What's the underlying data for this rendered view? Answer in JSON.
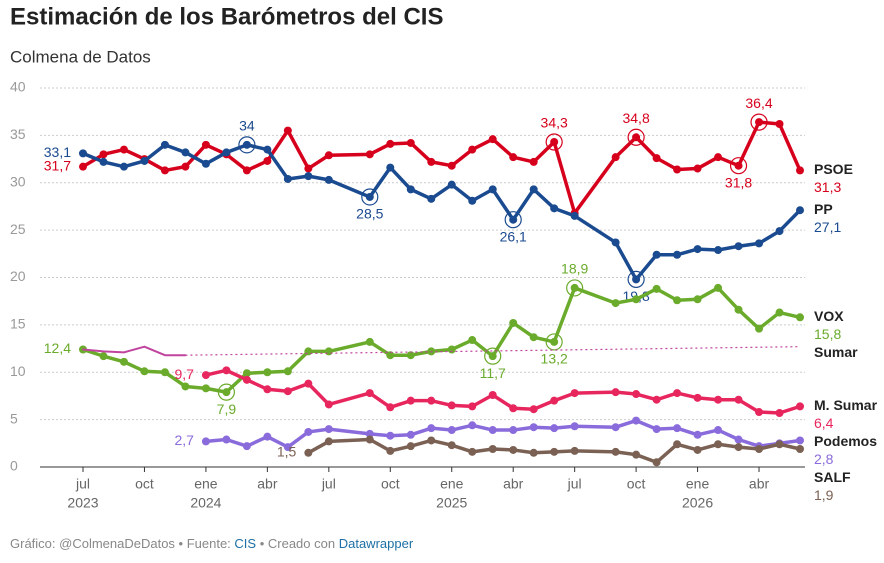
{
  "chart_data": {
    "type": "line",
    "title": "Estimación de los Barómetros del CIS",
    "subtitle": "Colmena de Datos",
    "footer": {
      "prefix": "Gráfico: @ColmenaDeDatos • Fuente:",
      "source": "CIS",
      "middle": "• Creado con",
      "tool": "Datawrapper"
    },
    "x": [
      "2023-07",
      "2023-08",
      "2023-09",
      "2023-10",
      "2023-11",
      "2023-12",
      "2024-01",
      "2024-02",
      "2024-03",
      "2024-04",
      "2024-05",
      "2024-06",
      "2024-07",
      "2024-09",
      "2024-10",
      "2024-11",
      "2024-12",
      "2025-01",
      "2025-02",
      "2025-03",
      "2025-04",
      "2025-05",
      "2025-06",
      "2025-07",
      "2025-09",
      "2025-10",
      "2025-11",
      "2025-12",
      "2026-01",
      "2026-02",
      "2026-03",
      "2026-04",
      "2026-05",
      "2026-06"
    ],
    "xlim": [
      "2023-07",
      "2026-06"
    ],
    "xticks": [
      {
        "value": "2023-07",
        "label": "jul"
      },
      {
        "value": "2023-10",
        "label": "oct"
      },
      {
        "value": "2024-01",
        "label": "ene"
      },
      {
        "value": "2024-04",
        "label": "abr"
      },
      {
        "value": "2024-07",
        "label": "jul"
      },
      {
        "value": "2024-10",
        "label": "oct"
      },
      {
        "value": "2025-01",
        "label": "ene"
      },
      {
        "value": "2025-04",
        "label": "abr"
      },
      {
        "value": "2025-07",
        "label": "jul"
      },
      {
        "value": "2025-10",
        "label": "oct"
      },
      {
        "value": "2026-01",
        "label": "ene"
      },
      {
        "value": "2026-04",
        "label": "abr"
      }
    ],
    "xtick_years": [
      {
        "value": "2023-07",
        "label": "2023"
      },
      {
        "value": "2024-01",
        "label": "2024"
      },
      {
        "value": "2025-01",
        "label": "2025"
      },
      {
        "value": "2026-01",
        "label": "2026"
      }
    ],
    "ylim": [
      0,
      40
    ],
    "yticks": [
      0,
      5,
      10,
      15,
      20,
      25,
      30,
      35,
      40
    ],
    "grid": true,
    "series": [
      {
        "name": "PSOE",
        "color": "#d7001c",
        "markers": true,
        "values": [
          31.7,
          33,
          33.5,
          32.5,
          31.3,
          31.7,
          34,
          33,
          31.3,
          32.3,
          35.5,
          31.5,
          32.9,
          33,
          34.1,
          34.2,
          32.2,
          31.8,
          33.5,
          34.6,
          32.7,
          32.2,
          34.3,
          26.8,
          32.7,
          34.8,
          32.6,
          31.4,
          31.5,
          32.7,
          31.8,
          36.4,
          36.2,
          31.3
        ],
        "value_labels": [
          "31,7",
          null,
          null,
          null,
          null,
          null,
          null,
          null,
          null,
          null,
          null,
          null,
          null,
          null,
          null,
          null,
          null,
          null,
          null,
          null,
          null,
          null,
          "34,3",
          null,
          null,
          "34,8",
          null,
          null,
          null,
          null,
          "31,8",
          "36,4",
          null,
          "31,3"
        ]
      },
      {
        "name": "PP",
        "color": "#1a4a8f",
        "markers": true,
        "values": [
          33.1,
          32.2,
          31.7,
          32.3,
          34,
          33.2,
          32,
          33.2,
          34,
          33.5,
          30.4,
          30.7,
          30.3,
          28.5,
          31.6,
          29.3,
          28.3,
          29.8,
          28.1,
          29.3,
          26.1,
          29.3,
          27.3,
          26.5,
          23.7,
          19.8,
          22.4,
          22.4,
          23,
          22.9,
          23.3,
          23.6,
          24.9,
          27.1
        ],
        "value_labels": [
          "33,1",
          null,
          null,
          null,
          null,
          null,
          null,
          null,
          "34",
          null,
          null,
          null,
          null,
          "28,5",
          null,
          null,
          null,
          null,
          null,
          null,
          "26,1",
          null,
          null,
          null,
          null,
          "19,8",
          null,
          null,
          null,
          null,
          null,
          null,
          null,
          "27,1"
        ]
      },
      {
        "name": "VOX",
        "color": "#6aab2b",
        "markers": true,
        "values": [
          12.4,
          11.7,
          11.1,
          10.1,
          10,
          8.5,
          8.3,
          7.9,
          9.9,
          10,
          10.1,
          12.2,
          12.2,
          13.2,
          11.8,
          11.8,
          12.2,
          12.4,
          13.4,
          11.7,
          15.2,
          13.7,
          13.2,
          18.9,
          17.3,
          17.7,
          18.8,
          17.6,
          17.7,
          18.9,
          16.6,
          14.6,
          16.3,
          15.8
        ],
        "value_labels": [
          "12,4",
          null,
          null,
          null,
          null,
          null,
          null,
          "7,9",
          null,
          null,
          null,
          null,
          null,
          null,
          null,
          null,
          null,
          null,
          null,
          "11,7",
          null,
          null,
          "13,2",
          "18,9",
          null,
          null,
          null,
          null,
          null,
          null,
          null,
          null,
          null,
          "15,8"
        ]
      },
      {
        "name": "Sumar",
        "color": "#c0449e",
        "markers": false,
        "gap": "dotted",
        "values": [
          12.4,
          12.2,
          12.1,
          12.7,
          11.8,
          11.8,
          null,
          null,
          null,
          null,
          null,
          null,
          null,
          null,
          null,
          null,
          null,
          null,
          null,
          null,
          null,
          null,
          null,
          null,
          null,
          null,
          null,
          null,
          null,
          null,
          null,
          null,
          null,
          12.7
        ]
      },
      {
        "name": "M. Sumar",
        "color": "#e8265e",
        "markers": true,
        "values": [
          null,
          null,
          null,
          null,
          null,
          null,
          9.7,
          10.2,
          9.2,
          8.2,
          8,
          8.8,
          6.6,
          7.8,
          6.3,
          7,
          7,
          6.5,
          6.4,
          7.6,
          6.2,
          6.1,
          7,
          7.8,
          7.9,
          7.7,
          7.1,
          7.8,
          7.3,
          7.1,
          7.1,
          5.8,
          5.7,
          6.4
        ],
        "value_labels": [
          null,
          null,
          null,
          null,
          null,
          null,
          "9,7",
          null,
          null,
          null,
          null,
          null,
          null,
          null,
          null,
          null,
          null,
          null,
          null,
          null,
          null,
          null,
          null,
          null,
          null,
          null,
          null,
          null,
          null,
          null,
          null,
          null,
          null,
          "6,4"
        ]
      },
      {
        "name": "Podemos",
        "color": "#8a6bdc",
        "markers": true,
        "values": [
          null,
          null,
          null,
          null,
          null,
          null,
          2.7,
          2.9,
          2.2,
          3.2,
          2.1,
          3.7,
          4,
          3.5,
          3.3,
          3.4,
          4.1,
          3.9,
          4.4,
          3.9,
          3.9,
          4.2,
          4.1,
          4.3,
          4.2,
          4.9,
          4,
          4.1,
          3.4,
          3.9,
          2.9,
          2.2,
          2.5,
          2.8
        ],
        "value_labels": [
          null,
          null,
          null,
          null,
          null,
          null,
          "2,7",
          null,
          null,
          null,
          null,
          null,
          null,
          null,
          null,
          null,
          null,
          null,
          null,
          null,
          null,
          null,
          null,
          null,
          null,
          null,
          null,
          null,
          null,
          null,
          null,
          null,
          null,
          "2,8"
        ]
      },
      {
        "name": "SALF",
        "color": "#7b6154",
        "markers": true,
        "values": [
          null,
          null,
          null,
          null,
          null,
          null,
          null,
          null,
          null,
          null,
          null,
          1.5,
          2.7,
          2.9,
          1.7,
          2.2,
          2.8,
          2.3,
          1.6,
          1.9,
          1.8,
          1.5,
          1.6,
          1.7,
          1.6,
          1.3,
          0.5,
          2.4,
          1.8,
          2.4,
          2.1,
          1.9,
          2.4,
          1.9
        ],
        "value_labels": [
          null,
          null,
          null,
          null,
          null,
          null,
          null,
          null,
          null,
          null,
          null,
          "1,5",
          null,
          null,
          null,
          null,
          null,
          null,
          null,
          null,
          null,
          null,
          null,
          null,
          null,
          null,
          null,
          null,
          null,
          null,
          null,
          null,
          null,
          "1,9"
        ]
      }
    ]
  }
}
